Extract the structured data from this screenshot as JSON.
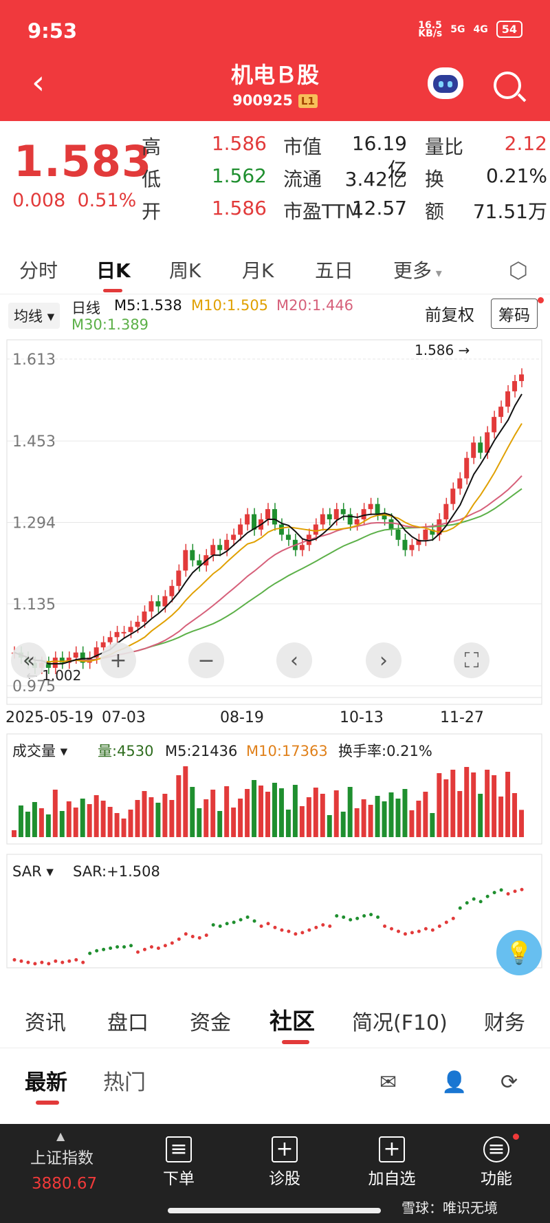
{
  "status": {
    "time": "9:53",
    "net": "16.5\nKB/s",
    "sig1": "5G",
    "sig2": "4G",
    "battery": "54"
  },
  "header": {
    "title": "机电Ｂ股",
    "code": "900925",
    "level": "L1"
  },
  "quote": {
    "price": "1.583",
    "change": "0.008",
    "change_pct": "0.51%",
    "rows": [
      {
        "l1": "高",
        "v1": "1.586",
        "c1": "red",
        "l2": "市值",
        "v2": "16.19亿",
        "l3": "量比",
        "v3": "2.12",
        "c3": "red"
      },
      {
        "l1": "低",
        "v1": "1.562",
        "c1": "green",
        "l2": "流通",
        "v2": "3.42亿",
        "l3": "换",
        "v3": "0.21%",
        "c3": ""
      },
      {
        "l1": "开",
        "v1": "1.586",
        "c1": "red",
        "l2": "市盈TTM",
        "v2": "12.57",
        "l3": "额",
        "v3": "71.51万",
        "c3": ""
      }
    ]
  },
  "period_tabs": [
    "分时",
    "日K",
    "周K",
    "月K",
    "五日",
    "更多"
  ],
  "ma_header": {
    "select": "均线",
    "series_label": "日线",
    "m5": "M5:1.538",
    "m10": "M10:1.505",
    "m20": "M20:1.446",
    "m30": "M30:1.389",
    "fuquan": "前复权",
    "chip": "筹码"
  },
  "colors": {
    "up": "#e23a3a",
    "down": "#1f8f2f",
    "ma5": "#111111",
    "ma10": "#e0a000",
    "ma20": "#d6607a",
    "ma30": "#5cb048"
  },
  "chart_data": [
    {
      "type": "candlestick",
      "y_ticks": [
        "1.613",
        "1.453",
        "1.294",
        "1.135",
        "0.975"
      ],
      "ylim": [
        0.975,
        1.613
      ],
      "x_ticks": [
        "2025-05-19",
        "07-03",
        "08-19",
        "10-13",
        "11-27"
      ],
      "annotations": {
        "high": "1.586",
        "low": "1.002"
      },
      "closes": [
        1.04,
        1.03,
        1.02,
        1.01,
        1.02,
        1.01,
        1.03,
        1.02,
        1.03,
        1.04,
        1.02,
        1.03,
        1.05,
        1.06,
        1.07,
        1.08,
        1.08,
        1.09,
        1.1,
        1.12,
        1.14,
        1.13,
        1.15,
        1.17,
        1.2,
        1.24,
        1.22,
        1.21,
        1.23,
        1.25,
        1.24,
        1.26,
        1.27,
        1.29,
        1.31,
        1.28,
        1.3,
        1.32,
        1.29,
        1.27,
        1.26,
        1.24,
        1.25,
        1.27,
        1.29,
        1.31,
        1.3,
        1.32,
        1.31,
        1.29,
        1.3,
        1.32,
        1.33,
        1.31,
        1.3,
        1.28,
        1.26,
        1.24,
        1.25,
        1.26,
        1.28,
        1.27,
        1.3,
        1.33,
        1.36,
        1.38,
        1.42,
        1.45,
        1.43,
        1.47,
        1.5,
        1.52,
        1.55,
        1.57,
        1.583
      ]
    },
    {
      "type": "bar",
      "title": "成交量",
      "labels": {
        "vol": "量:4530",
        "m5": "M5:21436",
        "m10": "M10:17363",
        "turnover_label": "换手率:",
        "turnover": "0.21%"
      }
    },
    {
      "type": "scatter",
      "title": "SAR",
      "labels": {
        "sar": "SAR:+1.508"
      }
    }
  ],
  "section_tabs": [
    "资讯",
    "盘口",
    "资金",
    "社区",
    "简况(F10)",
    "财务"
  ],
  "feed_tabs": [
    "最新",
    "热门"
  ],
  "bottom": {
    "index_name": "上证指数",
    "index_value": "3880.67",
    "items": [
      "下单",
      "诊股",
      "加自选",
      "功能"
    ],
    "watermark": "雪球：唯识无境"
  }
}
